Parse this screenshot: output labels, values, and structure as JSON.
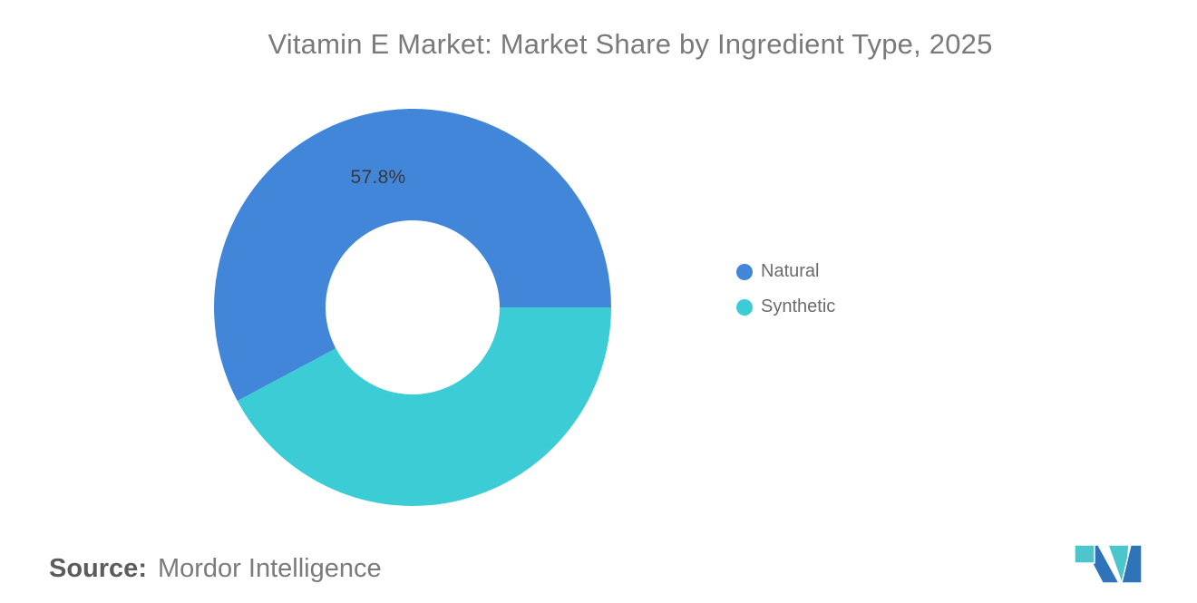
{
  "header": {
    "title": "Vitamin E Market: Market Share by Ingredient Type, 2025"
  },
  "chart_data": {
    "type": "pie",
    "title": "Vitamin E Market: Market Share by Ingredient Type, 2025",
    "donut": true,
    "inner_radius_pct": 44,
    "start_angle_deg": 241.92,
    "direction": "clockwise",
    "legend_position": "right",
    "background": "#ffffff",
    "slices": [
      {
        "label": "Natural",
        "value": 57.8,
        "color": "#4286d9",
        "data_label": "57.8%"
      },
      {
        "label": "Synthetic",
        "value": 42.2,
        "color": "#3bccd5",
        "data_label": ""
      }
    ]
  },
  "footer": {
    "source_label": "Source:",
    "source_text": "Mordor Intelligence"
  },
  "logo": {
    "name": "mordor-intelligence-logo",
    "blue": "#2f74b9",
    "teal": "#4cc5cd"
  }
}
